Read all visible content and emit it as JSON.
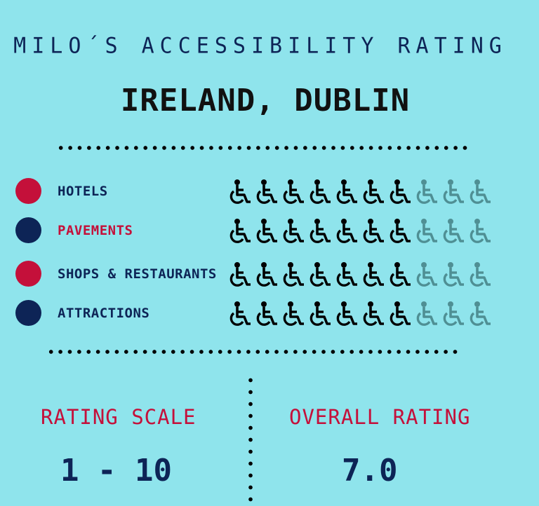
{
  "header": {
    "title": "MILO´S ACCESSIBILITY RATING",
    "location": "IRELAND, DUBLIN"
  },
  "colors": {
    "background": "#8fe4ec",
    "red": "#c4103a",
    "navy": "#0d2456",
    "icon_filled": "#000000",
    "icon_empty": "#4f8f94"
  },
  "categories": [
    {
      "label": "HOTELS",
      "bullet_color": "#c4103a",
      "label_color": "#0d2456",
      "score": 7,
      "max": 10
    },
    {
      "label": "PAVEMENTS",
      "bullet_color": "#0d2456",
      "label_color": "#c4103a",
      "score": 7,
      "max": 10
    },
    {
      "label": "SHOPS & RESTAURANTS",
      "bullet_color": "#c4103a",
      "label_color": "#0d2456",
      "score": 7,
      "max": 10
    },
    {
      "label": "ATTRACTIONS",
      "bullet_color": "#0d2456",
      "label_color": "#0d2456",
      "score": 7,
      "max": 10
    }
  ],
  "icon": "wheelchair-icon",
  "footer": {
    "scale_label": "RATING SCALE",
    "scale_value": "1 - 10",
    "overall_label": "OVERALL RATING",
    "overall_value": "7.0"
  }
}
